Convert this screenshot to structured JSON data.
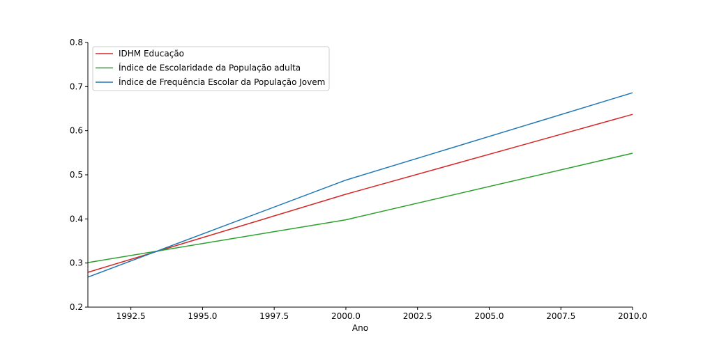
{
  "chart_data": {
    "type": "line",
    "title": "",
    "xlabel": "Ano",
    "ylabel": "",
    "xlim": [
      1991,
      2010
    ],
    "ylim": [
      0.2,
      0.8
    ],
    "x_ticks": [
      1992.5,
      1995.0,
      1997.5,
      2000.0,
      2002.5,
      2005.0,
      2007.5,
      2010.0
    ],
    "x_tick_labels": [
      "1992.5",
      "1995.0",
      "1997.5",
      "2000.0",
      "2002.5",
      "2005.0",
      "2007.5",
      "2010.0"
    ],
    "y_ticks": [
      0.2,
      0.3,
      0.4,
      0.5,
      0.6,
      0.7,
      0.8
    ],
    "y_tick_labels": [
      "0.2",
      "0.3",
      "0.4",
      "0.5",
      "0.6",
      "0.7",
      "0.8"
    ],
    "x": [
      1991,
      2000,
      2010
    ],
    "grid": false,
    "legend_position": "top-left",
    "series": [
      {
        "name": "IDHM Educação",
        "color": "#d62728",
        "values": [
          0.279,
          0.456,
          0.637
        ]
      },
      {
        "name": "Índice de Escolaridade da População adulta",
        "color": "#2ca02c",
        "values": [
          0.301,
          0.398,
          0.549
        ]
      },
      {
        "name": "Índice de Frequência Escolar da População Jovem",
        "color": "#1f77b4",
        "values": [
          0.268,
          0.488,
          0.686
        ]
      }
    ]
  }
}
